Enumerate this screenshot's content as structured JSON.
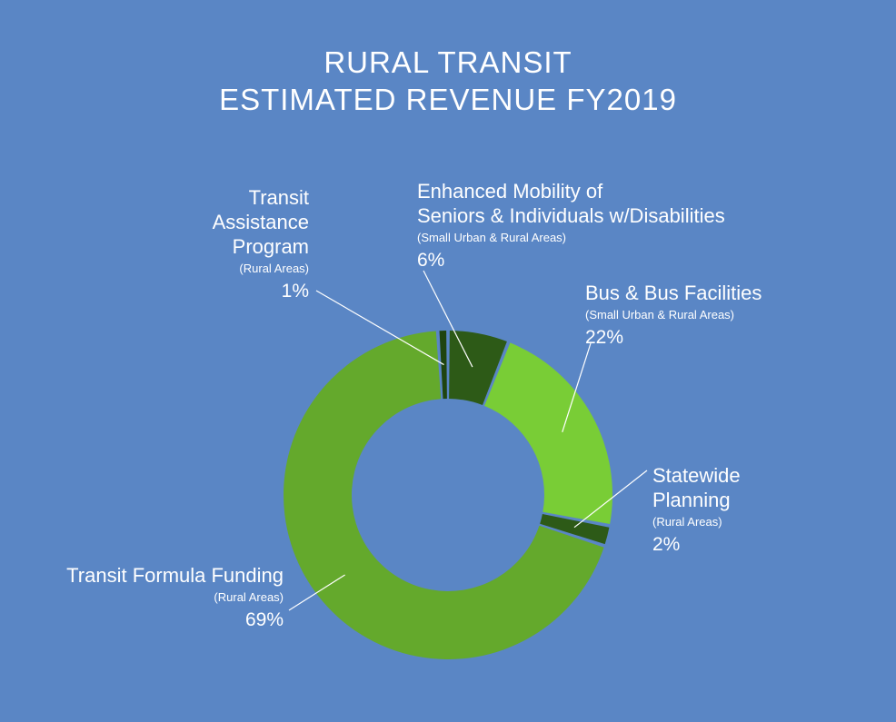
{
  "chart_data": {
    "type": "pie",
    "title": [
      "RURAL TRANSIT",
      "ESTIMATED REVENUE FY2019"
    ],
    "slices": [
      {
        "name": [
          "Enhanced Mobility of",
          "Seniors & Individuals w/Disabilities"
        ],
        "sub": "(Small Urban & Rural Areas)",
        "value": 6,
        "label": "6%",
        "color": "#2d5a17"
      },
      {
        "name": [
          "Bus & Bus Facilities"
        ],
        "sub": "(Small Urban & Rural Areas)",
        "value": 22,
        "label": "22%",
        "color": "#79cd36"
      },
      {
        "name": [
          "Statewide",
          "Planning"
        ],
        "sub": "(Rural Areas)",
        "value": 2,
        "label": "2%",
        "color": "#2d5a17"
      },
      {
        "name": [
          "Transit Formula Funding"
        ],
        "sub": "(Rural Areas)",
        "value": 69,
        "label": "69%",
        "color": "#64a92c"
      },
      {
        "name": [
          "Transit",
          "Assistance",
          "Program"
        ],
        "sub": "(Rural Areas)",
        "value": 1,
        "label": "1%",
        "color": "#1f4410"
      }
    ],
    "legend": "none"
  }
}
